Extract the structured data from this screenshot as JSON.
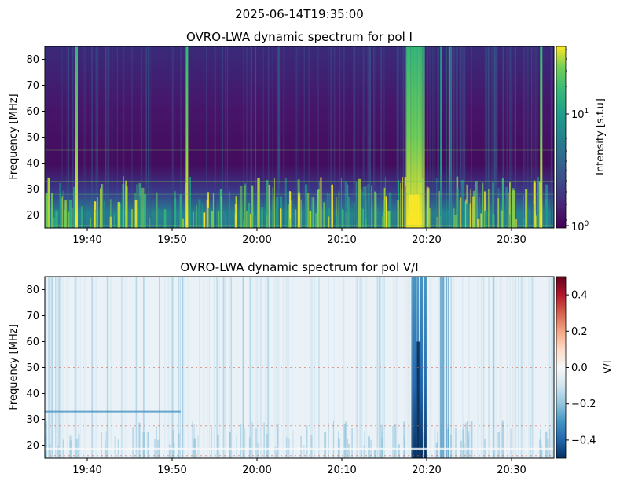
{
  "suptitle": "2025-06-14T19:35:00",
  "chart_data": [
    {
      "type": "heatmap",
      "title": "OVRO-LWA dynamic spectrum for pol I",
      "xlabel": "",
      "ylabel": "Frequency [MHz]",
      "x_range": [
        "19:35",
        "20:35"
      ],
      "ylim": [
        15,
        85
      ],
      "x_ticks": [
        "19:40",
        "19:50",
        "20:00",
        "20:10",
        "20:20",
        "20:30"
      ],
      "y_ticks": [
        20,
        30,
        40,
        50,
        60,
        70,
        80
      ],
      "colormap": "viridis",
      "scale": "log",
      "colorbar": {
        "label": "Intensity [s.f.u]",
        "range": [
          0.95,
          35
        ],
        "ticks": [
          {
            "base": "10",
            "exp": "0",
            "value": 1
          },
          {
            "base": "10",
            "exp": "1",
            "value": 10
          }
        ]
      },
      "features": [
        {
          "kind": "vertical burst",
          "time": "19:38:45",
          "freq_range": [
            15,
            85
          ]
        },
        {
          "kind": "vertical burst",
          "time": "19:51:45",
          "freq_range": [
            15,
            85
          ]
        },
        {
          "kind": "type III storm",
          "time_range": [
            "20:17:30",
            "20:19:30"
          ],
          "freq_range": [
            15,
            85
          ]
        },
        {
          "kind": "vertical burst",
          "time": "20:33:30",
          "freq_range": [
            15,
            85
          ]
        },
        {
          "kind": "low-frequency bursts",
          "time_range": [
            "19:35",
            "20:35"
          ],
          "freq_range": [
            15,
            35
          ]
        }
      ]
    },
    {
      "type": "heatmap",
      "title": "OVRO-LWA dynamic spectrum for pol V/I",
      "xlabel": "",
      "ylabel": "Frequency [MHz]",
      "x_range": [
        "19:35",
        "20:35"
      ],
      "ylim": [
        15,
        85
      ],
      "x_ticks": [
        "19:40",
        "19:50",
        "20:00",
        "20:10",
        "20:20",
        "20:30"
      ],
      "y_ticks": [
        20,
        30,
        40,
        50,
        60,
        70,
        80
      ],
      "colormap": "RdBu_r",
      "scale": "linear",
      "colorbar": {
        "label": "V/I",
        "range": [
          -0.5,
          0.5
        ],
        "ticks": [
          {
            "label": "0.4",
            "value": 0.4
          },
          {
            "label": "0.2",
            "value": 0.2
          },
          {
            "label": "0.0",
            "value": 0.0
          },
          {
            "label": "−0.2",
            "value": -0.2
          },
          {
            "label": "−0.4",
            "value": -0.4
          }
        ]
      },
      "features": [
        {
          "kind": "negative polarization band",
          "time_range": [
            "20:18:00",
            "20:20:00"
          ],
          "freq_range": [
            15,
            85
          ]
        },
        {
          "kind": "horizontal line",
          "freq": 33,
          "time_range": [
            "19:35",
            "19:51"
          ]
        }
      ]
    }
  ],
  "colors": {
    "viridis_low": "#440154",
    "viridis_high": "#fde725",
    "rdbu_low": "#053061",
    "rdbu_mid": "#f7f7f7",
    "rdbu_high": "#67001f"
  }
}
